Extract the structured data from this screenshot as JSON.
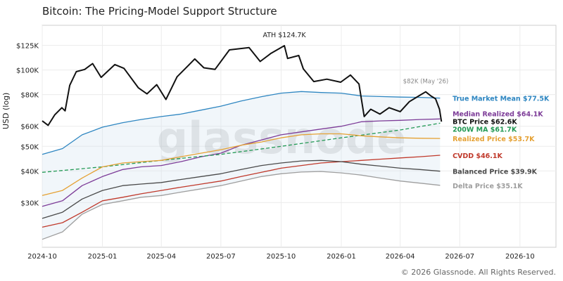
{
  "header": {
    "title": "Bitcoin: The Pricing-Model Support Structure"
  },
  "footer": {
    "copyright": "© 2026 Glassnode. All Rights Reserved."
  },
  "watermark": "glassnode",
  "chart_data": {
    "type": "line",
    "title": "Bitcoin: The Pricing-Model Support Structure",
    "xlabel": "",
    "ylabel": "USD (log)",
    "y_scale": "log",
    "grid": true,
    "ylim": [
      20000,
      150000
    ],
    "xlim": [
      "2024-10-01",
      "2026-11-25"
    ],
    "x_ticks": [
      {
        "date": "2024-10-01",
        "label": "2024-10"
      },
      {
        "date": "2025-01-01",
        "label": "2025-01"
      },
      {
        "date": "2025-04-01",
        "label": "2025-04"
      },
      {
        "date": "2025-07-01",
        "label": "2025-07"
      },
      {
        "date": "2025-10-01",
        "label": "2025-10"
      },
      {
        "date": "2026-01-01",
        "label": "2026-01"
      },
      {
        "date": "2026-04-01",
        "label": "2026-04"
      },
      {
        "date": "2026-07-01",
        "label": "2026-07"
      },
      {
        "date": "2026-10-01",
        "label": "2026-10"
      }
    ],
    "y_ticks": [
      {
        "value": 30000,
        "label": "$30K"
      },
      {
        "value": 40000,
        "label": "$40K"
      },
      {
        "value": 50000,
        "label": "$50K"
      },
      {
        "value": 60000,
        "label": "$60K"
      },
      {
        "value": 80000,
        "label": "$80K"
      },
      {
        "value": 100000,
        "label": "$100K"
      },
      {
        "value": 125000,
        "label": "$125K"
      }
    ],
    "series": [
      {
        "key": "true_market_mean",
        "label": "True Market Mean $77.5K",
        "color": "#2e86c1",
        "dashed": false,
        "width": 1.3,
        "points": [
          [
            "2024-10-01",
            46500
          ],
          [
            "2024-11-01",
            49000
          ],
          [
            "2024-12-01",
            55500
          ],
          [
            "2025-01-01",
            59500
          ],
          [
            "2025-02-01",
            62000
          ],
          [
            "2025-03-01",
            63800
          ],
          [
            "2025-04-01",
            65500
          ],
          [
            "2025-05-01",
            67000
          ],
          [
            "2025-06-01",
            69500
          ],
          [
            "2025-07-01",
            72000
          ],
          [
            "2025-08-01",
            75500
          ],
          [
            "2025-09-01",
            78500
          ],
          [
            "2025-10-01",
            81000
          ],
          [
            "2025-11-01",
            82200
          ],
          [
            "2025-12-01",
            81500
          ],
          [
            "2026-01-01",
            81000
          ],
          [
            "2026-02-01",
            79000
          ],
          [
            "2026-03-01",
            78600
          ],
          [
            "2026-04-01",
            78200
          ],
          [
            "2026-05-01",
            78000
          ],
          [
            "2026-06-01",
            77500
          ]
        ]
      },
      {
        "key": "median_realized",
        "label": "Median Realized $64.1K",
        "color": "#7d3c98",
        "dashed": false,
        "width": 1.3,
        "points": [
          [
            "2024-10-01",
            29000
          ],
          [
            "2024-11-01",
            30500
          ],
          [
            "2024-12-01",
            35000
          ],
          [
            "2025-01-01",
            38000
          ],
          [
            "2025-02-01",
            40500
          ],
          [
            "2025-03-01",
            41500
          ],
          [
            "2025-04-01",
            42000
          ],
          [
            "2025-05-01",
            43500
          ],
          [
            "2025-06-01",
            45500
          ],
          [
            "2025-07-01",
            47000
          ],
          [
            "2025-08-01",
            50500
          ],
          [
            "2025-09-01",
            53000
          ],
          [
            "2025-10-01",
            55500
          ],
          [
            "2025-11-01",
            57000
          ],
          [
            "2025-12-01",
            58500
          ],
          [
            "2026-01-01",
            60000
          ],
          [
            "2026-02-01",
            62500
          ],
          [
            "2026-03-01",
            63000
          ],
          [
            "2026-04-01",
            63300
          ],
          [
            "2026-05-01",
            63800
          ],
          [
            "2026-06-01",
            64100
          ]
        ]
      },
      {
        "key": "ma_200w",
        "label": "200W MA $61.7K",
        "color": "#229954",
        "dashed": true,
        "width": 1.3,
        "points": [
          [
            "2024-10-01",
            39500
          ],
          [
            "2025-01-01",
            41500
          ],
          [
            "2025-04-01",
            44000
          ],
          [
            "2025-07-01",
            46500
          ],
          [
            "2025-10-01",
            50000
          ],
          [
            "2026-01-01",
            54000
          ],
          [
            "2026-04-01",
            58000
          ],
          [
            "2026-06-01",
            61700
          ]
        ]
      },
      {
        "key": "realized_price",
        "label": "Realized Price $53.7K",
        "color": "#e5a133",
        "dashed": false,
        "width": 1.3,
        "points": [
          [
            "2024-10-01",
            32000
          ],
          [
            "2024-11-01",
            33500
          ],
          [
            "2024-12-01",
            37500
          ],
          [
            "2025-01-01",
            41500
          ],
          [
            "2025-02-01",
            43000
          ],
          [
            "2025-03-01",
            43500
          ],
          [
            "2025-04-01",
            44000
          ],
          [
            "2025-05-01",
            45500
          ],
          [
            "2025-06-01",
            47000
          ],
          [
            "2025-07-01",
            48500
          ],
          [
            "2025-08-01",
            50500
          ],
          [
            "2025-09-01",
            52000
          ],
          [
            "2025-10-01",
            54000
          ],
          [
            "2025-11-01",
            55500
          ],
          [
            "2025-12-01",
            56000
          ],
          [
            "2026-01-01",
            56000
          ],
          [
            "2026-02-01",
            55000
          ],
          [
            "2026-03-01",
            54500
          ],
          [
            "2026-04-01",
            54000
          ],
          [
            "2026-05-01",
            53800
          ],
          [
            "2026-06-01",
            53700
          ]
        ]
      },
      {
        "key": "cvdd",
        "label": "CVDD $46.1K",
        "color": "#c0392b",
        "dashed": false,
        "width": 1.3,
        "points": [
          [
            "2024-10-01",
            24000
          ],
          [
            "2024-11-01",
            25000
          ],
          [
            "2024-12-01",
            27500
          ],
          [
            "2025-01-01",
            30500
          ],
          [
            "2025-02-01",
            31500
          ],
          [
            "2025-03-01",
            32500
          ],
          [
            "2025-04-01",
            33500
          ],
          [
            "2025-05-01",
            34500
          ],
          [
            "2025-06-01",
            35500
          ],
          [
            "2025-07-01",
            36500
          ],
          [
            "2025-08-01",
            38000
          ],
          [
            "2025-09-01",
            39500
          ],
          [
            "2025-10-01",
            41000
          ],
          [
            "2025-11-01",
            42000
          ],
          [
            "2025-12-01",
            43000
          ],
          [
            "2026-01-01",
            43500
          ],
          [
            "2026-02-01",
            44000
          ],
          [
            "2026-03-01",
            44500
          ],
          [
            "2026-04-01",
            45000
          ],
          [
            "2026-05-01",
            45500
          ],
          [
            "2026-06-01",
            46100
          ]
        ]
      },
      {
        "key": "balanced_price",
        "label": "Balanced Price $39.9K",
        "color": "#4a4a4a",
        "dashed": false,
        "width": 1.3,
        "points": [
          [
            "2024-10-01",
            26000
          ],
          [
            "2024-11-01",
            27500
          ],
          [
            "2024-12-01",
            31000
          ],
          [
            "2025-01-01",
            33500
          ],
          [
            "2025-02-01",
            35000
          ],
          [
            "2025-03-01",
            35500
          ],
          [
            "2025-04-01",
            36000
          ],
          [
            "2025-05-01",
            37000
          ],
          [
            "2025-06-01",
            38000
          ],
          [
            "2025-07-01",
            39000
          ],
          [
            "2025-08-01",
            40500
          ],
          [
            "2025-09-01",
            42000
          ],
          [
            "2025-10-01",
            43000
          ],
          [
            "2025-11-01",
            43800
          ],
          [
            "2025-12-01",
            44000
          ],
          [
            "2026-01-01",
            43500
          ],
          [
            "2026-02-01",
            42500
          ],
          [
            "2026-03-01",
            41800
          ],
          [
            "2026-04-01",
            41000
          ],
          [
            "2026-05-01",
            40500
          ],
          [
            "2026-06-01",
            39900
          ]
        ]
      },
      {
        "key": "delta_price",
        "label": "Delta Price $35.1K",
        "color": "#9e9e9e",
        "dashed": false,
        "width": 1.3,
        "points": [
          [
            "2024-10-01",
            21500
          ],
          [
            "2024-11-01",
            23000
          ],
          [
            "2024-12-01",
            27000
          ],
          [
            "2025-01-01",
            29500
          ],
          [
            "2025-02-01",
            30500
          ],
          [
            "2025-03-01",
            31500
          ],
          [
            "2025-04-01",
            32000
          ],
          [
            "2025-05-01",
            33000
          ],
          [
            "2025-06-01",
            34000
          ],
          [
            "2025-07-01",
            35000
          ],
          [
            "2025-08-01",
            36500
          ],
          [
            "2025-09-01",
            38000
          ],
          [
            "2025-10-01",
            39000
          ],
          [
            "2025-11-01",
            39600
          ],
          [
            "2025-12-01",
            39800
          ],
          [
            "2026-01-01",
            39300
          ],
          [
            "2026-02-01",
            38500
          ],
          [
            "2026-03-01",
            37500
          ],
          [
            "2026-04-01",
            36500
          ],
          [
            "2026-05-01",
            35800
          ],
          [
            "2026-06-01",
            35100
          ]
        ]
      },
      {
        "key": "btc_price",
        "label": "BTC Price $62.6K",
        "color": "#111111",
        "dashed": false,
        "width": 2,
        "points": [
          [
            "2024-10-01",
            63000
          ],
          [
            "2024-10-10",
            60500
          ],
          [
            "2024-10-20",
            66500
          ],
          [
            "2024-10-31",
            71000
          ],
          [
            "2024-11-05",
            69000
          ],
          [
            "2024-11-12",
            87000
          ],
          [
            "2024-11-22",
            98500
          ],
          [
            "2024-12-05",
            100500
          ],
          [
            "2024-12-17",
            106000
          ],
          [
            "2024-12-30",
            93500
          ],
          [
            "2025-01-20",
            105000
          ],
          [
            "2025-02-03",
            101500
          ],
          [
            "2025-02-25",
            85000
          ],
          [
            "2025-03-10",
            80500
          ],
          [
            "2025-03-25",
            87500
          ],
          [
            "2025-04-08",
            76500
          ],
          [
            "2025-04-25",
            94000
          ],
          [
            "2025-05-12",
            104000
          ],
          [
            "2025-05-22",
            110500
          ],
          [
            "2025-06-05",
            102000
          ],
          [
            "2025-06-22",
            100500
          ],
          [
            "2025-07-14",
            120000
          ],
          [
            "2025-08-13",
            122500
          ],
          [
            "2025-08-30",
            108000
          ],
          [
            "2025-09-15",
            116000
          ],
          [
            "2025-10-06",
            124700
          ],
          [
            "2025-10-11",
            111000
          ],
          [
            "2025-10-28",
            114000
          ],
          [
            "2025-11-04",
            101000
          ],
          [
            "2025-11-20",
            90000
          ],
          [
            "2025-12-10",
            92000
          ],
          [
            "2025-12-31",
            89500
          ],
          [
            "2026-01-15",
            95500
          ],
          [
            "2026-01-28",
            88000
          ],
          [
            "2026-02-05",
            65500
          ],
          [
            "2026-02-15",
            70000
          ],
          [
            "2026-03-01",
            67000
          ],
          [
            "2026-03-15",
            71000
          ],
          [
            "2026-04-01",
            68500
          ],
          [
            "2026-04-15",
            75000
          ],
          [
            "2026-05-01",
            79500
          ],
          [
            "2026-05-10",
            82000
          ],
          [
            "2026-05-18",
            79000
          ],
          [
            "2026-05-25",
            77000
          ],
          [
            "2026-05-31",
            70000
          ],
          [
            "2026-06-03",
            62600
          ]
        ]
      }
    ],
    "labels": [
      {
        "series": "true_market_mean",
        "text": "True Market Mean $77.5K",
        "value": 77500
      },
      {
        "series": "median_realized",
        "text": "Median Realized $64.1K",
        "value": 67400
      },
      {
        "series": "btc_price",
        "text": "BTC Price $62.6K",
        "value": 62800
      },
      {
        "series": "ma_200w",
        "text": "200W MA $61.7K",
        "value": 58500
      },
      {
        "series": "realized_price",
        "text": "Realized Price $53.7K",
        "value": 53700
      },
      {
        "series": "cvdd",
        "text": "CVDD $46.1K",
        "value": 46100
      },
      {
        "series": "balanced_price",
        "text": "Balanced Price $39.9K",
        "value": 39900
      },
      {
        "series": "delta_price",
        "text": "Delta Price $35.1K",
        "value": 35100
      }
    ],
    "annotations": [
      {
        "text": "ATH $124.7K",
        "date": "2025-10-06",
        "value": 124700,
        "color": "#222222"
      },
      {
        "text": "$82K (May '26)",
        "date": "2026-05-10",
        "value": 82000,
        "color": "#888888"
      }
    ],
    "shaded_band": {
      "upper": "true_market_mean",
      "lower": "delta_price",
      "color": "#d6e6f2"
    }
  }
}
